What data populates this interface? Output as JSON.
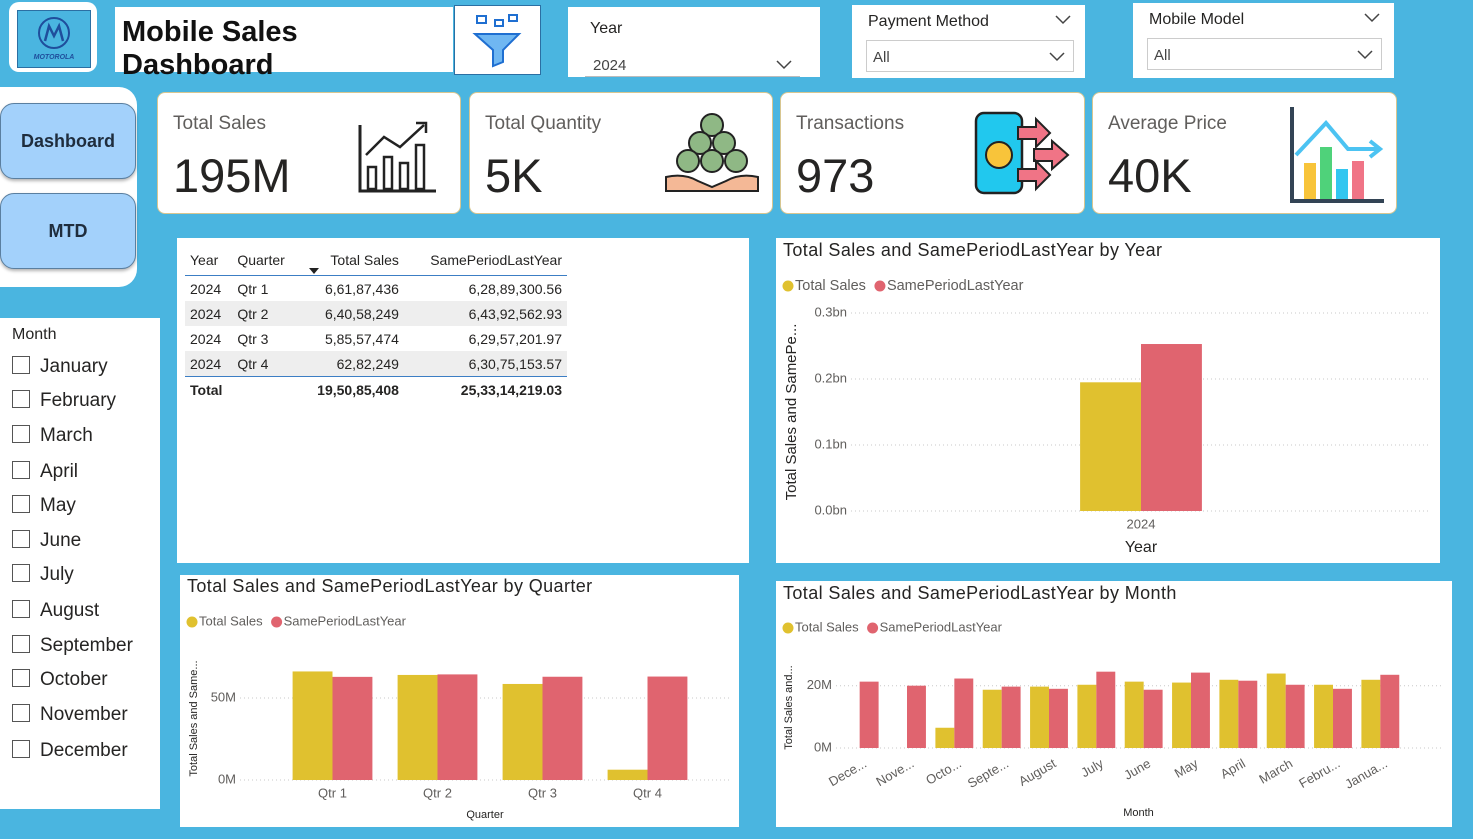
{
  "header": {
    "logo_text": "MOTOROLA",
    "title": "Mobile Sales Dashboard"
  },
  "nav": [
    "Dashboard",
    "MTD"
  ],
  "filters": [
    {
      "label": "Year",
      "value": "2024"
    },
    {
      "label": "Payment Method",
      "value": "All"
    },
    {
      "label": "Mobile Model",
      "value": "All"
    }
  ],
  "kpis": [
    {
      "label": "Total Sales",
      "value": "195M"
    },
    {
      "label": "Total Quantity",
      "value": "5K"
    },
    {
      "label": "Transactions",
      "value": "973"
    },
    {
      "label": "Average Price",
      "value": "40K"
    }
  ],
  "table": {
    "columns": [
      "Year",
      "Quarter",
      "Total Sales",
      "SamePeriodLastYear"
    ],
    "rows": [
      [
        "2024",
        "Qtr 1",
        "6,61,87,436",
        "6,28,89,300.56"
      ],
      [
        "2024",
        "Qtr 2",
        "6,40,58,249",
        "6,43,92,562.93"
      ],
      [
        "2024",
        "Qtr 3",
        "5,85,57,474",
        "6,29,57,201.97"
      ],
      [
        "2024",
        "Qtr 4",
        "62,82,249",
        "6,30,75,153.57"
      ]
    ],
    "total": [
      "Total",
      "19,50,85,408",
      "25,33,14,219.03"
    ]
  },
  "month_slicer": {
    "title": "Month",
    "items": [
      "January",
      "February",
      "March",
      "April",
      "May",
      "June",
      "July",
      "August",
      "September",
      "October",
      "November",
      "December"
    ]
  },
  "chart_data": [
    {
      "type": "bar",
      "title": "Total Sales and SamePeriodLastYear by Year",
      "x_label": "Year",
      "y_label": "Total Sales and SamePe...",
      "categories": [
        "2024"
      ],
      "series": [
        {
          "name": "Total Sales",
          "color": "#E0C12F",
          "values": [
            0.195
          ]
        },
        {
          "name": "SamePeriodLastYear",
          "color": "#E0646F",
          "values": [
            0.253
          ]
        }
      ],
      "ylim": [
        0,
        0.3
      ],
      "yticks": [
        {
          "value": 0,
          "label": "0.0bn"
        },
        {
          "value": 0.1,
          "label": "0.1bn"
        },
        {
          "value": 0.2,
          "label": "0.2bn"
        },
        {
          "value": 0.3,
          "label": "0.3bn"
        }
      ],
      "grid": true
    },
    {
      "type": "bar",
      "title": "Total Sales and SamePeriodLastYear by Quarter",
      "x_label": "Quarter",
      "y_label": "Total Sales and Same...",
      "categories": [
        "Qtr 1",
        "Qtr 2",
        "Qtr 3",
        "Qtr 4"
      ],
      "series": [
        {
          "name": "Total Sales",
          "color": "#E0C12F",
          "values": [
            66.19,
            64.06,
            58.56,
            6.28
          ]
        },
        {
          "name": "SamePeriodLastYear",
          "color": "#E0646F",
          "values": [
            62.89,
            64.39,
            62.96,
            63.08
          ]
        }
      ],
      "ylim": [
        0,
        75
      ],
      "yticks": [
        {
          "value": 0,
          "label": "0M"
        },
        {
          "value": 50,
          "label": "50M"
        }
      ],
      "grid": true
    },
    {
      "type": "bar",
      "title": "Total Sales and SamePeriodLastYear by Month",
      "x_label": "Month",
      "y_label": "Total Sales and...",
      "categories": [
        "Dece...",
        "Nove...",
        "Octo...",
        "Septe...",
        "August",
        "July",
        "June",
        "May",
        "April",
        "March",
        "Febru...",
        "Janua..."
      ],
      "series": [
        {
          "name": "Total Sales",
          "color": "#E0C12F",
          "values": [
            null,
            null,
            6.5,
            18.7,
            19.7,
            20.3,
            21.3,
            21.0,
            21.9,
            23.9,
            20.3,
            21.9
          ]
        },
        {
          "name": "SamePeriodLastYear",
          "color": "#E0646F",
          "values": [
            21.3,
            20.0,
            22.3,
            19.7,
            19.0,
            24.5,
            18.7,
            24.2,
            21.6,
            20.3,
            19.0,
            23.5
          ]
        }
      ],
      "ylim": [
        0,
        26
      ],
      "yticks": [
        {
          "value": 0,
          "label": "0M"
        },
        {
          "value": 20,
          "label": "20M"
        }
      ],
      "grid": true
    }
  ]
}
